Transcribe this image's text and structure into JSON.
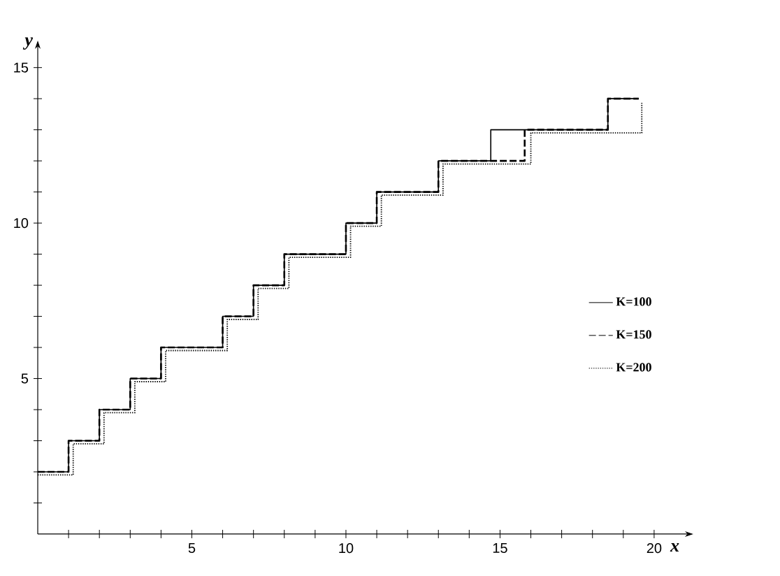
{
  "chart_data": {
    "type": "step",
    "xlabel": "x",
    "ylabel": "y",
    "xlim": [
      0,
      21
    ],
    "ylim": [
      0,
      15.6
    ],
    "xticks": [
      {
        "value": 1,
        "label": null
      },
      {
        "value": 2,
        "label": null
      },
      {
        "value": 3,
        "label": null
      },
      {
        "value": 4,
        "label": null
      },
      5,
      {
        "value": 6,
        "label": null
      },
      {
        "value": 7,
        "label": null
      },
      {
        "value": 8,
        "label": null
      },
      {
        "value": 9,
        "label": null
      },
      10,
      {
        "value": 11,
        "label": null
      },
      {
        "value": 12,
        "label": null
      },
      {
        "value": 13,
        "label": null
      },
      {
        "value": 14,
        "label": null
      },
      15,
      {
        "value": 16,
        "label": null
      },
      {
        "value": 17,
        "label": null
      },
      {
        "value": 18,
        "label": null
      },
      {
        "value": 19,
        "label": null
      },
      20
    ],
    "yticks": [
      {
        "value": 1,
        "label": null
      },
      {
        "value": 2,
        "label": null
      },
      {
        "value": 3,
        "label": null
      },
      {
        "value": 4,
        "label": null
      },
      5,
      {
        "value": 6,
        "label": null
      },
      {
        "value": 7,
        "label": null
      },
      {
        "value": 8,
        "label": null
      },
      {
        "value": 9,
        "label": null
      },
      10,
      {
        "value": 11,
        "label": null
      },
      {
        "value": 12,
        "label": null
      },
      {
        "value": 13,
        "label": null
      },
      {
        "value": 14,
        "label": null
      },
      15
    ],
    "legend": "right",
    "grid": false,
    "series": [
      {
        "name": "K=100",
        "color": "#000000",
        "line_style": "solid",
        "x": [
          0,
          1,
          2,
          3,
          4,
          6,
          7,
          8,
          10,
          11,
          13,
          14.7,
          18.5,
          19.5
        ],
        "values": [
          2,
          3,
          4,
          5,
          6,
          7,
          8,
          9,
          10,
          11,
          12,
          13,
          14,
          14
        ]
      },
      {
        "name": "K=150",
        "color": "#000000",
        "line_style": "dashed",
        "x": [
          0,
          1,
          2,
          3,
          4,
          6,
          7,
          8,
          10,
          11,
          13,
          15.8,
          18.5,
          19.5
        ],
        "values": [
          2,
          3,
          4,
          5,
          6,
          7,
          8,
          9,
          10,
          11,
          12,
          13,
          14,
          14
        ]
      },
      {
        "name": "K=200",
        "color": "#000000",
        "line_style": "dotted",
        "x": [
          0,
          1.15,
          2.15,
          3.15,
          4.15,
          6.15,
          7.15,
          8.15,
          10.15,
          11.15,
          13.15,
          16,
          19.6
        ],
        "values": [
          1.9,
          2.9,
          3.9,
          4.9,
          5.9,
          6.9,
          7.9,
          8.9,
          9.9,
          10.9,
          11.9,
          12.9,
          13.9
        ]
      }
    ]
  }
}
